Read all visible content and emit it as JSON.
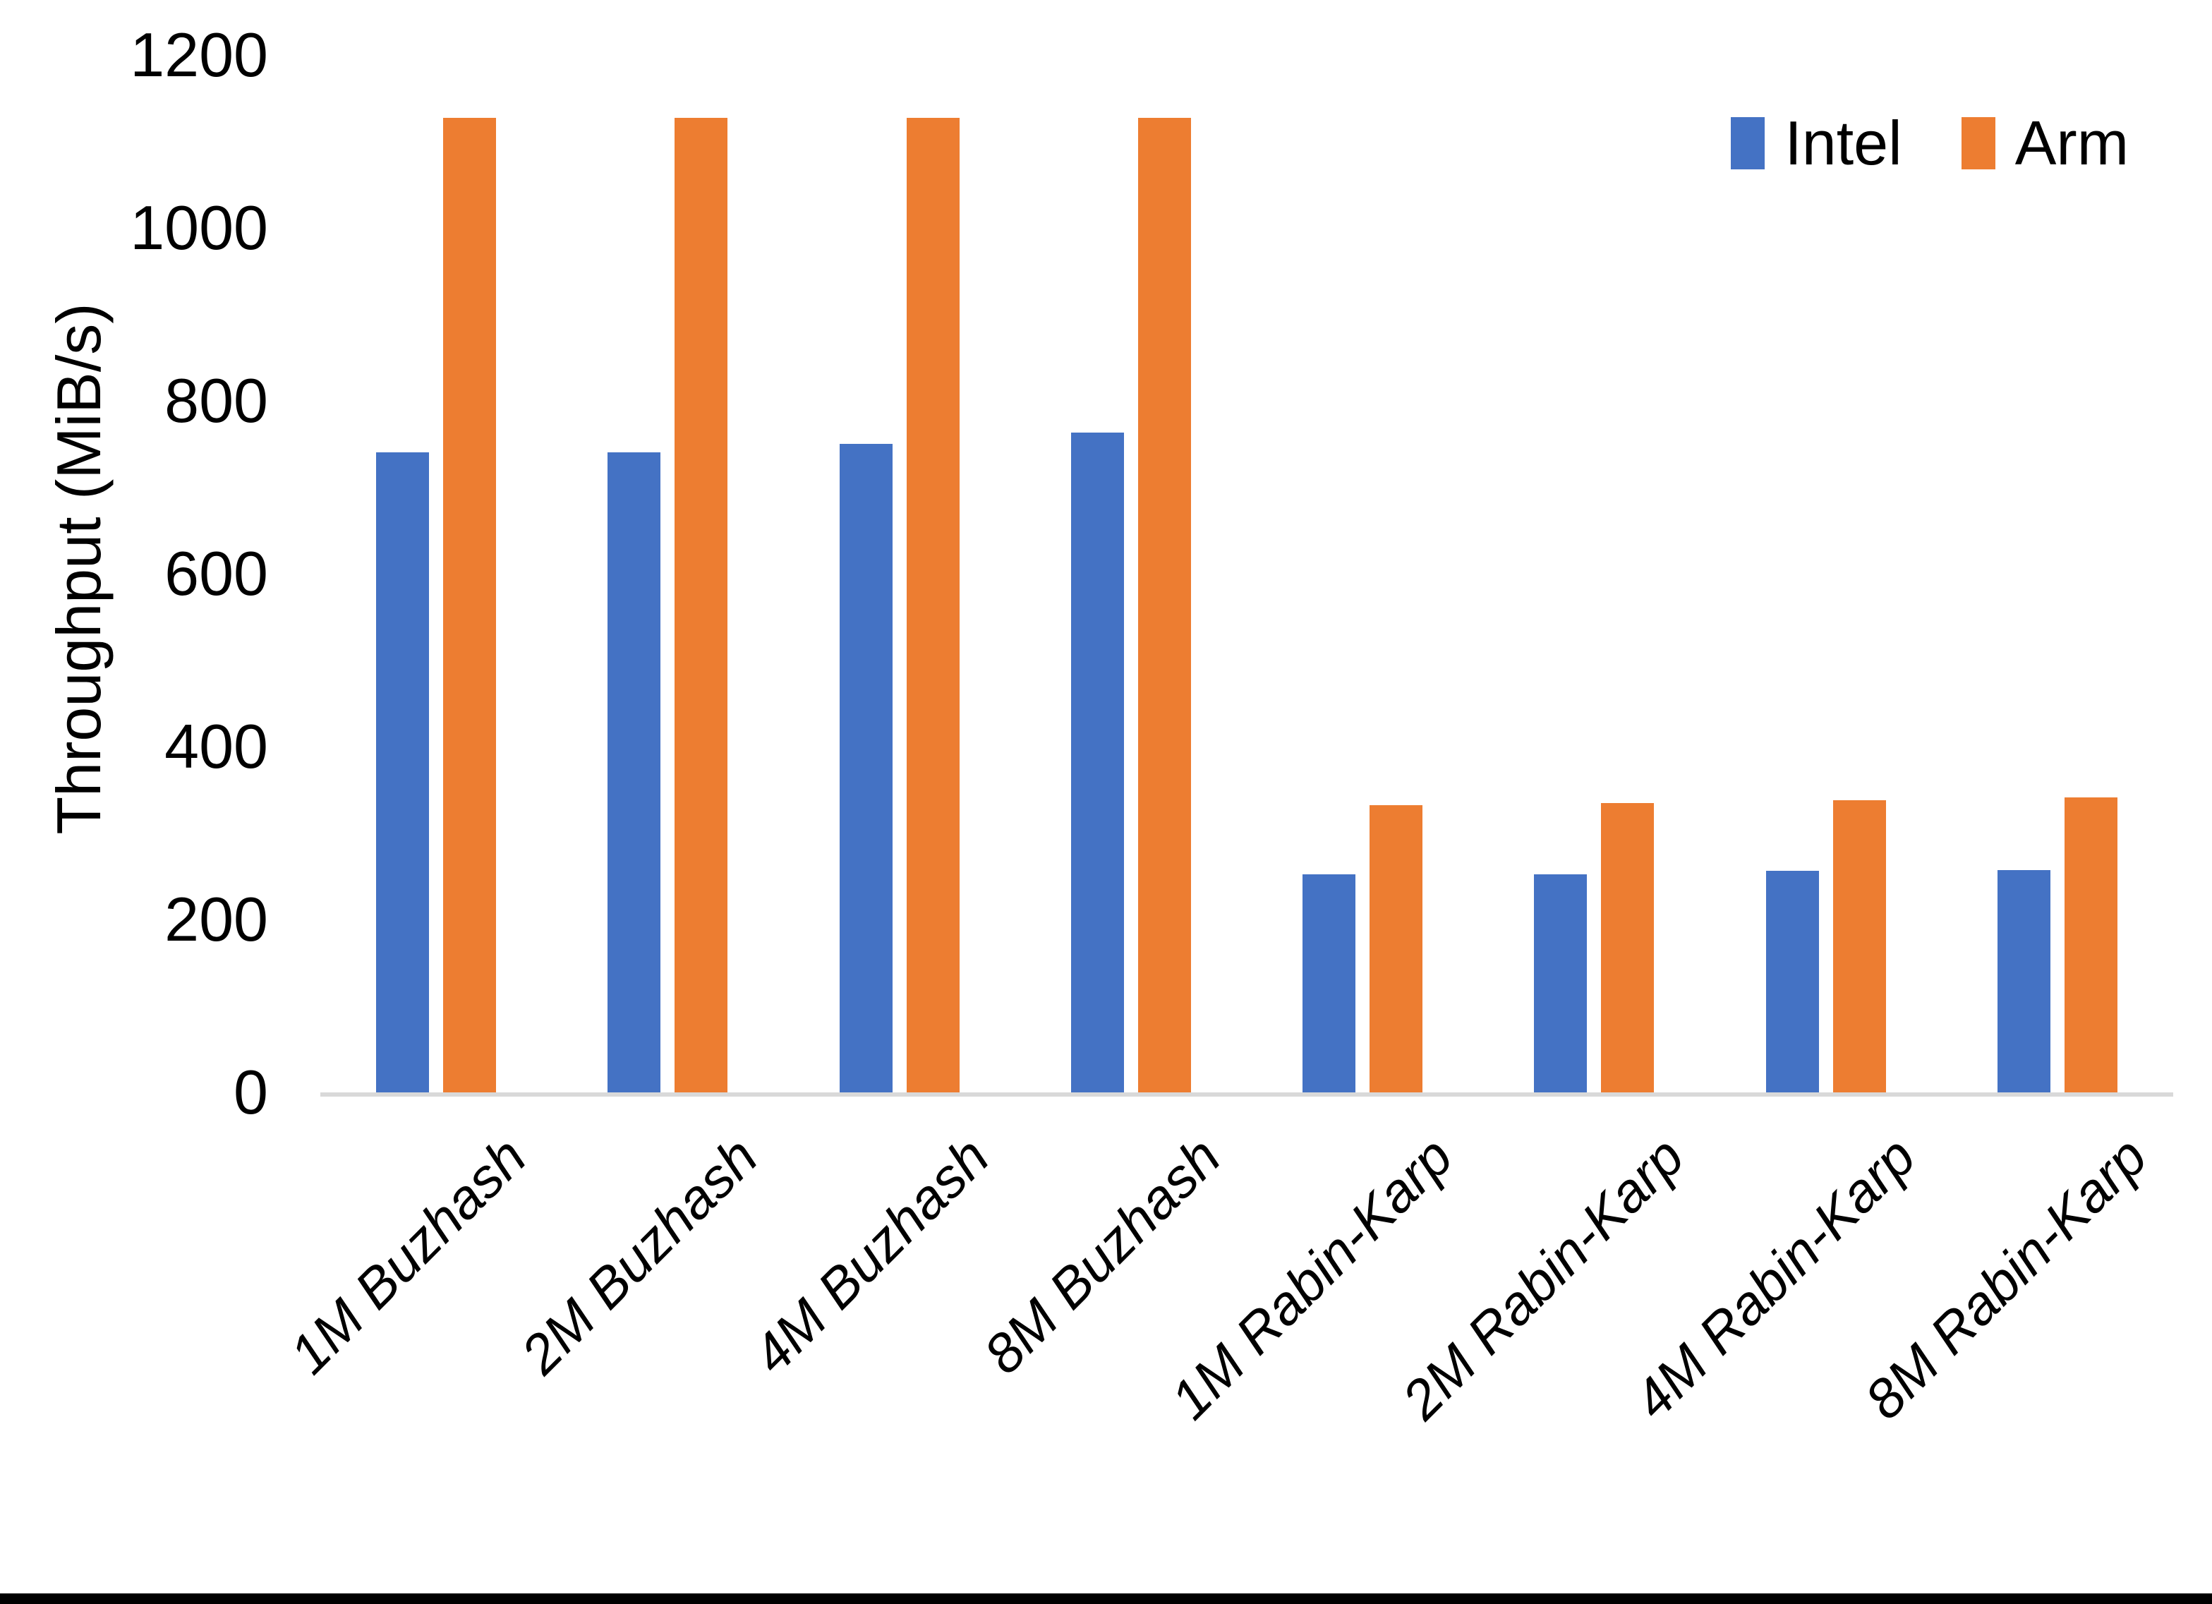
{
  "chart_data": {
    "type": "bar",
    "title": "",
    "y_axis_title": "Throughput (MiB/s)",
    "categories": [
      "1M Buzhash",
      "2M Buzhash",
      "4M Buzhash",
      "8M Buzhash",
      "1M Rabin-Karp",
      "2M Rabin-Karp",
      "4M Rabin-Karp",
      "8M Rabin-Karp"
    ],
    "series": [
      {
        "name": "Intel",
        "color": "#4472C4",
        "values": [
          740,
          740,
          750,
          763,
          252,
          252,
          256,
          257
        ]
      },
      {
        "name": "Arm",
        "color": "#ED7D31",
        "values": [
          1127,
          1127,
          1127,
          1127,
          332,
          335,
          338,
          341
        ]
      }
    ],
    "ylim": [
      0,
      1200
    ],
    "yticks": [
      0,
      200,
      400,
      600,
      800,
      1000,
      1200
    ],
    "grid": false,
    "legend_position": "top-right",
    "colors": {
      "axis_line": "#d9d9d9",
      "text": "#000000",
      "background": "#ffffff",
      "bottom_border": "#000000"
    }
  }
}
